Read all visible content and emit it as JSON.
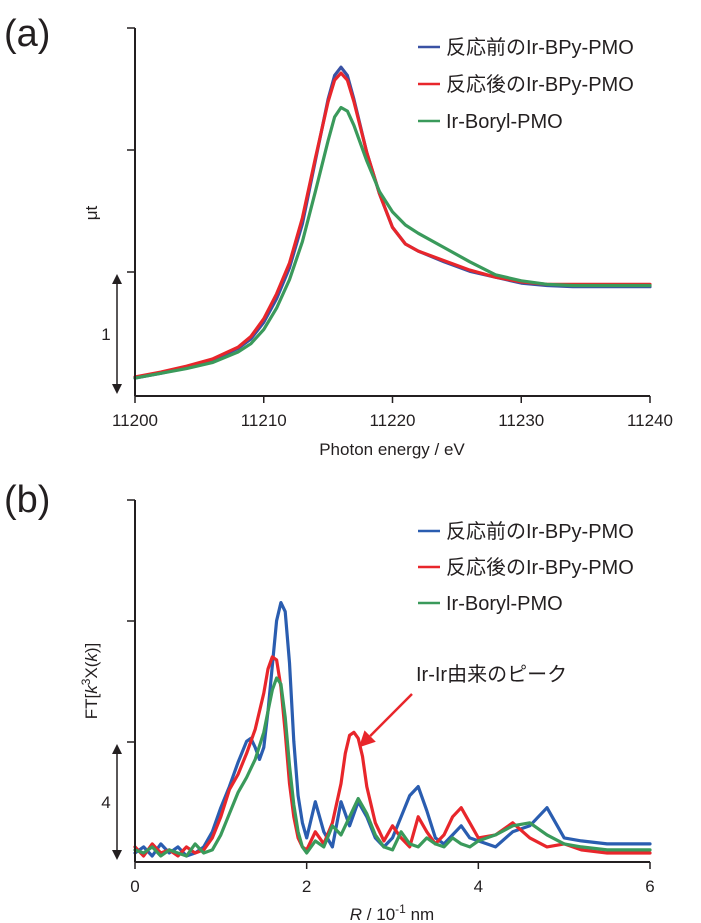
{
  "chart_data": [
    {
      "panel_label": "(a)",
      "type": "line",
      "xlabel": "Photon energy / eV",
      "ylabel": "μt",
      "xlim": [
        11200,
        11240
      ],
      "ylim": [
        0,
        3
      ],
      "xticks": [
        11200,
        11210,
        11220,
        11230,
        11240
      ],
      "scale_bar": {
        "label": "1",
        "value": 1
      },
      "legend_position": "top-right",
      "series": [
        {
          "name": "反応前のIr-BPy-PMO",
          "color": "#3a52a4",
          "x": [
            11200,
            11202,
            11204,
            11206,
            11208,
            11209,
            11210,
            11211,
            11212,
            11213,
            11214,
            11215,
            11215.5,
            11216,
            11216.5,
            11217,
            11218,
            11219,
            11220,
            11221,
            11222,
            11224,
            11226,
            11228,
            11230,
            11232,
            11234,
            11237,
            11240
          ],
          "y": [
            0.05,
            0.09,
            0.14,
            0.2,
            0.3,
            0.38,
            0.52,
            0.72,
            0.98,
            1.35,
            1.88,
            2.4,
            2.6,
            2.67,
            2.6,
            2.4,
            1.95,
            1.6,
            1.32,
            1.18,
            1.12,
            1.03,
            0.95,
            0.9,
            0.85,
            0.83,
            0.82,
            0.82,
            0.82
          ]
        },
        {
          "name": "反応後のIr-BPy-PMO",
          "color": "#e8262b",
          "x": [
            11200,
            11202,
            11204,
            11206,
            11208,
            11209,
            11210,
            11211,
            11212,
            11213,
            11214,
            11215,
            11215.5,
            11216,
            11216.5,
            11217,
            11218,
            11219,
            11220,
            11221,
            11222,
            11224,
            11226,
            11228,
            11230,
            11232,
            11234,
            11237,
            11240
          ],
          "y": [
            0.06,
            0.1,
            0.15,
            0.21,
            0.31,
            0.4,
            0.55,
            0.76,
            1.02,
            1.4,
            1.9,
            2.38,
            2.56,
            2.62,
            2.56,
            2.38,
            1.95,
            1.6,
            1.32,
            1.18,
            1.12,
            1.04,
            0.96,
            0.9,
            0.86,
            0.84,
            0.84,
            0.84,
            0.84
          ]
        },
        {
          "name": "Ir-Boryl-PMO",
          "color": "#3a9a5b",
          "x": [
            11200,
            11202,
            11204,
            11206,
            11208,
            11209,
            11210,
            11211,
            11212,
            11213,
            11214,
            11215,
            11215.5,
            11216,
            11216.5,
            11217,
            11218,
            11219,
            11220,
            11221,
            11222,
            11224,
            11226,
            11228,
            11230,
            11232,
            11234,
            11237,
            11240
          ],
          "y": [
            0.05,
            0.09,
            0.13,
            0.18,
            0.27,
            0.34,
            0.46,
            0.64,
            0.88,
            1.2,
            1.62,
            2.05,
            2.25,
            2.33,
            2.3,
            2.18,
            1.88,
            1.62,
            1.45,
            1.34,
            1.27,
            1.15,
            1.03,
            0.92,
            0.87,
            0.84,
            0.83,
            0.83,
            0.83
          ]
        }
      ]
    },
    {
      "panel_label": "(b)",
      "type": "line",
      "xlabel_italic": "R",
      "xlabel_rest": " / 10",
      "xlabel_exp": "-1",
      "xlabel_unit": " nm",
      "ylabel_parts": {
        "a": "FT[",
        "b": "k",
        "c": "3",
        "d": "X(",
        "e": "k",
        "f": ")]"
      },
      "xlim": [
        0,
        6
      ],
      "ylim": [
        0,
        12
      ],
      "xticks": [
        0,
        2,
        4,
        6
      ],
      "scale_bar": {
        "label": "4",
        "value": 4
      },
      "legend_position": "top-right",
      "annotation": "Ir-Ir由来のピーク",
      "annotation_color": "#e8262b",
      "annotation_target": [
        2.55,
        3.8
      ],
      "series": [
        {
          "name": "反応前のIr-BPy-PMO",
          "color": "#2a5db0",
          "x": [
            0,
            0.1,
            0.2,
            0.3,
            0.4,
            0.5,
            0.6,
            0.7,
            0.8,
            0.9,
            1.0,
            1.1,
            1.2,
            1.3,
            1.35,
            1.4,
            1.45,
            1.5,
            1.55,
            1.6,
            1.65,
            1.7,
            1.75,
            1.8,
            1.85,
            1.9,
            1.95,
            2.0,
            2.1,
            2.2,
            2.3,
            2.4,
            2.5,
            2.6,
            2.7,
            2.8,
            2.9,
            3.0,
            3.1,
            3.2,
            3.3,
            3.4,
            3.5,
            3.6,
            3.7,
            3.8,
            3.9,
            4.0,
            4.2,
            4.4,
            4.6,
            4.8,
            5.0,
            5.2,
            5.5,
            6.0
          ],
          "y": [
            0.3,
            0.5,
            0.2,
            0.6,
            0.3,
            0.5,
            0.2,
            0.3,
            0.5,
            1.0,
            1.8,
            2.5,
            3.3,
            4.0,
            4.1,
            3.8,
            3.4,
            3.8,
            5.0,
            6.5,
            8.0,
            8.6,
            8.3,
            6.6,
            4.0,
            2.2,
            1.3,
            0.8,
            2.0,
            1.0,
            0.5,
            2.0,
            1.2,
            2.0,
            1.5,
            0.8,
            0.5,
            0.8,
            1.5,
            2.2,
            2.5,
            1.7,
            0.8,
            0.6,
            0.9,
            1.2,
            0.8,
            0.7,
            0.5,
            1.0,
            1.2,
            1.8,
            0.8,
            0.7,
            0.6,
            0.6
          ]
        },
        {
          "name": "反応後のIr-BPy-PMO",
          "color": "#e8262b",
          "x": [
            0,
            0.1,
            0.2,
            0.3,
            0.4,
            0.5,
            0.6,
            0.7,
            0.8,
            0.9,
            1.0,
            1.1,
            1.2,
            1.3,
            1.4,
            1.5,
            1.55,
            1.6,
            1.65,
            1.7,
            1.75,
            1.8,
            1.85,
            1.9,
            1.95,
            2.0,
            2.1,
            2.2,
            2.3,
            2.4,
            2.45,
            2.5,
            2.55,
            2.6,
            2.65,
            2.7,
            2.8,
            2.9,
            3.0,
            3.1,
            3.2,
            3.3,
            3.4,
            3.5,
            3.6,
            3.7,
            3.8,
            3.9,
            4.0,
            4.2,
            4.4,
            4.6,
            4.8,
            5.0,
            5.2,
            5.5,
            6.0
          ],
          "y": [
            0.5,
            0.2,
            0.6,
            0.3,
            0.4,
            0.2,
            0.5,
            0.3,
            0.4,
            0.8,
            1.5,
            2.4,
            2.9,
            3.6,
            4.4,
            5.6,
            6.4,
            6.8,
            6.7,
            5.8,
            4.3,
            2.6,
            1.5,
            0.8,
            0.5,
            0.4,
            1.0,
            0.6,
            1.3,
            2.6,
            3.6,
            4.2,
            4.3,
            4.1,
            3.5,
            2.5,
            1.3,
            0.7,
            1.2,
            0.8,
            0.5,
            1.5,
            1.0,
            0.6,
            0.9,
            1.5,
            1.8,
            1.3,
            0.8,
            0.9,
            1.3,
            0.8,
            0.5,
            0.6,
            0.4,
            0.3,
            0.3
          ]
        },
        {
          "name": "Ir-Boryl-PMO",
          "color": "#3a9a5b",
          "x": [
            0,
            0.1,
            0.2,
            0.3,
            0.4,
            0.5,
            0.6,
            0.7,
            0.8,
            0.9,
            1.0,
            1.1,
            1.2,
            1.3,
            1.4,
            1.5,
            1.55,
            1.6,
            1.65,
            1.7,
            1.75,
            1.8,
            1.85,
            1.9,
            1.95,
            2.0,
            2.1,
            2.2,
            2.3,
            2.4,
            2.5,
            2.6,
            2.7,
            2.8,
            2.9,
            3.0,
            3.1,
            3.2,
            3.3,
            3.4,
            3.5,
            3.6,
            3.7,
            3.8,
            3.9,
            4.0,
            4.2,
            4.4,
            4.6,
            4.8,
            5.0,
            5.2,
            5.5,
            6.0
          ],
          "y": [
            0.4,
            0.3,
            0.5,
            0.2,
            0.4,
            0.3,
            0.2,
            0.6,
            0.3,
            0.4,
            0.9,
            1.6,
            2.3,
            2.8,
            3.4,
            4.3,
            5.0,
            5.7,
            6.1,
            5.9,
            4.8,
            3.2,
            1.9,
            1.0,
            0.5,
            0.3,
            0.7,
            0.5,
            1.2,
            0.9,
            1.5,
            2.1,
            1.6,
            0.9,
            0.5,
            0.4,
            1.0,
            0.6,
            0.5,
            0.8,
            0.6,
            0.5,
            0.8,
            0.6,
            0.5,
            0.7,
            0.9,
            1.2,
            1.3,
            0.9,
            0.6,
            0.5,
            0.4,
            0.4
          ]
        }
      ]
    }
  ]
}
